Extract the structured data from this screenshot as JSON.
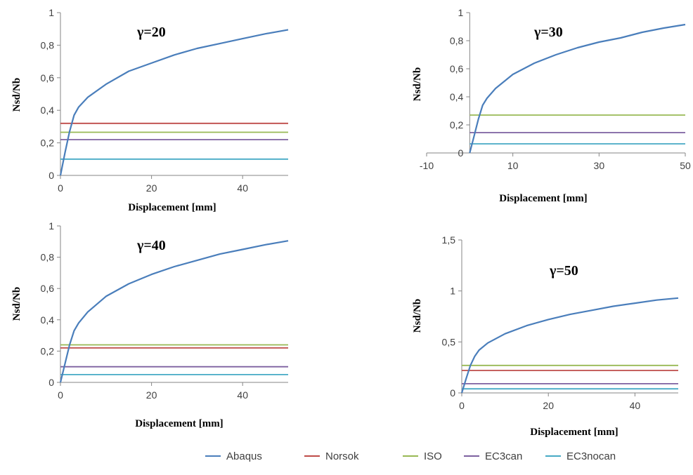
{
  "colors": {
    "Abaqus": "#4a7ebb",
    "Norsok": "#be4b48",
    "ISO": "#98b954",
    "EC3can": "#7d60a0",
    "EC3nocan": "#46aac5",
    "axis": "#868686"
  },
  "legend": [
    "Abaqus",
    "Norsok",
    "ISO",
    "EC3can",
    "EC3nocan"
  ],
  "chart_data": [
    {
      "type": "line",
      "title": "γ=20",
      "xlabel": "Displacement [mm]",
      "ylabel": "Nsd/Nb",
      "xlim": [
        0,
        50
      ],
      "ylim": [
        0,
        1
      ],
      "xticks": [
        0,
        20,
        40
      ],
      "xtick_labels": [
        "0",
        "20",
        "40"
      ],
      "yticks": [
        0,
        0.2,
        0.4,
        0.6,
        0.8,
        1
      ],
      "ytick_labels": [
        "0",
        "0,2",
        "0,4",
        "0,6",
        "0,8",
        "1"
      ],
      "series": [
        {
          "name": "Abaqus",
          "x": [
            0,
            1,
            2,
            3,
            4,
            6,
            10,
            15,
            20,
            25,
            30,
            35,
            40,
            45,
            50
          ],
          "y": [
            0,
            0.14,
            0.27,
            0.37,
            0.42,
            0.48,
            0.56,
            0.64,
            0.69,
            0.74,
            0.78,
            0.81,
            0.84,
            0.87,
            0.895
          ]
        },
        {
          "name": "Norsok",
          "x": [
            0,
            50
          ],
          "y": [
            0.32,
            0.32
          ]
        },
        {
          "name": "ISO",
          "x": [
            0,
            50
          ],
          "y": [
            0.265,
            0.265
          ]
        },
        {
          "name": "EC3can",
          "x": [
            0,
            50
          ],
          "y": [
            0.22,
            0.22
          ]
        },
        {
          "name": "EC3nocan",
          "x": [
            0,
            50
          ],
          "y": [
            0.1,
            0.1
          ]
        }
      ]
    },
    {
      "type": "line",
      "title": "γ=30",
      "xlabel": "Displacement [mm]",
      "ylabel": "Nsd/Nb",
      "xlim": [
        -10,
        50
      ],
      "ylim": [
        0,
        1
      ],
      "xticks": [
        -10,
        10,
        30,
        50
      ],
      "xtick_labels": [
        "-10",
        "10",
        "30",
        "50"
      ],
      "yticks": [
        0,
        0.2,
        0.4,
        0.6,
        0.8,
        1
      ],
      "ytick_labels": [
        "0",
        "0,2",
        "0,4",
        "0,6",
        "0,8",
        "1"
      ],
      "series": [
        {
          "name": "Abaqus",
          "x": [
            0,
            1,
            2,
            3,
            4,
            6,
            10,
            15,
            20,
            25,
            30,
            35,
            40,
            45,
            50
          ],
          "y": [
            0,
            0.12,
            0.24,
            0.34,
            0.39,
            0.46,
            0.56,
            0.64,
            0.7,
            0.75,
            0.79,
            0.82,
            0.86,
            0.89,
            0.915
          ]
        },
        {
          "name": "ISO",
          "x": [
            0,
            50
          ],
          "y": [
            0.27,
            0.27
          ]
        },
        {
          "name": "EC3can",
          "x": [
            0,
            50
          ],
          "y": [
            0.145,
            0.145
          ]
        },
        {
          "name": "EC3nocan",
          "x": [
            0,
            50
          ],
          "y": [
            0.065,
            0.065
          ]
        }
      ]
    },
    {
      "type": "line",
      "title": "γ=40",
      "xlabel": "Displacement [mm]",
      "ylabel": "Nsd/Nb",
      "xlim": [
        0,
        50
      ],
      "ylim": [
        0,
        1
      ],
      "xticks": [
        0,
        20,
        40
      ],
      "xtick_labels": [
        "0",
        "20",
        "40"
      ],
      "yticks": [
        0,
        0.2,
        0.4,
        0.6,
        0.8,
        1
      ],
      "ytick_labels": [
        "0",
        "0,2",
        "0,4",
        "0,6",
        "0,8",
        "1"
      ],
      "series": [
        {
          "name": "Abaqus",
          "x": [
            0,
            1,
            2,
            3,
            4,
            6,
            10,
            15,
            20,
            25,
            30,
            35,
            40,
            45,
            50
          ],
          "y": [
            0,
            0.12,
            0.24,
            0.33,
            0.38,
            0.45,
            0.55,
            0.63,
            0.69,
            0.74,
            0.78,
            0.82,
            0.85,
            0.88,
            0.905
          ]
        },
        {
          "name": "Norsok",
          "x": [
            0,
            50
          ],
          "y": [
            0.22,
            0.22
          ]
        },
        {
          "name": "ISO",
          "x": [
            0,
            50
          ],
          "y": [
            0.24,
            0.24
          ]
        },
        {
          "name": "EC3can",
          "x": [
            0,
            50
          ],
          "y": [
            0.1,
            0.1
          ]
        },
        {
          "name": "EC3nocan",
          "x": [
            0,
            50
          ],
          "y": [
            0.05,
            0.05
          ]
        }
      ]
    },
    {
      "type": "line",
      "title": "γ=50",
      "xlabel": "Displacement [mm]",
      "ylabel": "Nsd/Nb",
      "xlim": [
        0,
        50
      ],
      "ylim": [
        0,
        1.5
      ],
      "xticks": [
        0,
        20,
        40
      ],
      "xtick_labels": [
        "0",
        "20",
        "40"
      ],
      "yticks": [
        0,
        0.5,
        1,
        1.5
      ],
      "ytick_labels": [
        "0",
        "0,5",
        "1",
        "1,5"
      ],
      "series": [
        {
          "name": "Abaqus",
          "x": [
            0,
            1,
            2,
            3,
            4,
            6,
            10,
            15,
            20,
            25,
            30,
            35,
            40,
            45,
            50
          ],
          "y": [
            0,
            0.14,
            0.27,
            0.36,
            0.42,
            0.49,
            0.58,
            0.66,
            0.72,
            0.77,
            0.81,
            0.85,
            0.88,
            0.91,
            0.93
          ]
        },
        {
          "name": "Norsok",
          "x": [
            0,
            50
          ],
          "y": [
            0.22,
            0.22
          ]
        },
        {
          "name": "ISO",
          "x": [
            0,
            50
          ],
          "y": [
            0.27,
            0.27
          ]
        },
        {
          "name": "EC3can",
          "x": [
            0,
            50
          ],
          "y": [
            0.09,
            0.09
          ]
        },
        {
          "name": "EC3nocan",
          "x": [
            0,
            50
          ],
          "y": [
            0.04,
            0.04
          ]
        }
      ]
    }
  ]
}
